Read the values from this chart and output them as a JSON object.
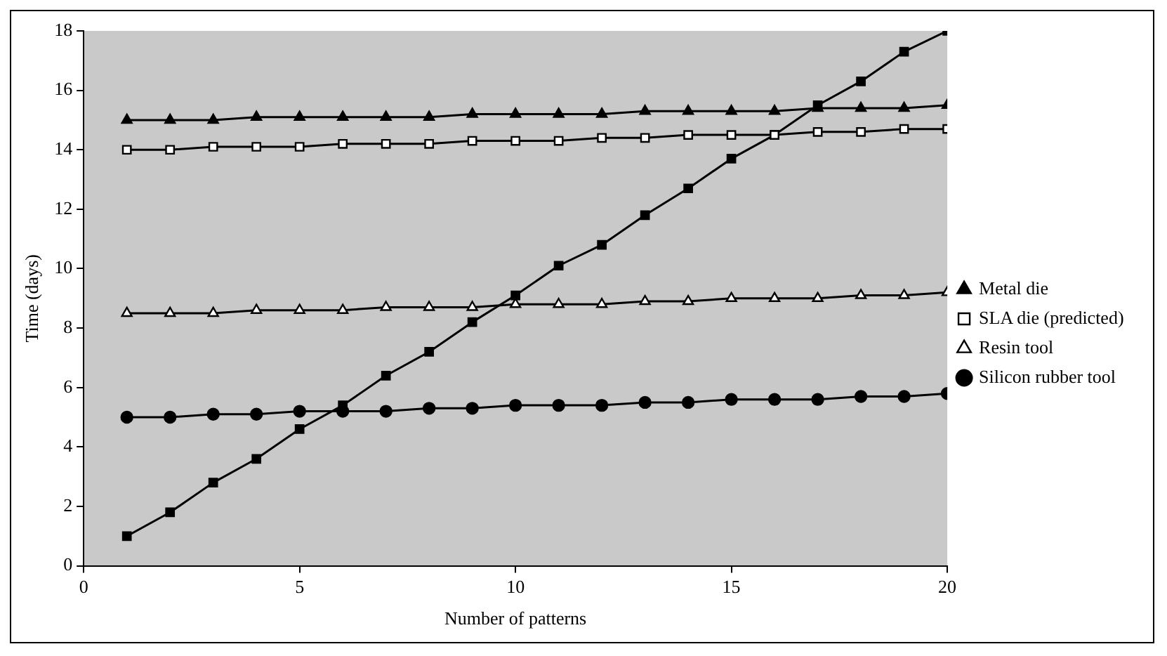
{
  "chart_data": {
    "type": "line",
    "xlabel": "Number of patterns",
    "ylabel": "Time (days)",
    "x": [
      1,
      2,
      3,
      4,
      5,
      6,
      7,
      8,
      9,
      10,
      11,
      12,
      13,
      14,
      15,
      16,
      17,
      18,
      19,
      20
    ],
    "xlim": [
      0,
      20
    ],
    "xticks": [
      0,
      5,
      10,
      15,
      20
    ],
    "ylim": [
      0,
      18
    ],
    "yticks": [
      0,
      2,
      4,
      6,
      8,
      10,
      12,
      14,
      16,
      18
    ],
    "grid": false,
    "legend": "right",
    "line_style": "solid",
    "series": [
      {
        "name": "Metal die",
        "color": "#000000",
        "marker": "triangle",
        "values": [
          15,
          15,
          15,
          15.1,
          15.1,
          15.1,
          15.1,
          15.1,
          15.2,
          15.2,
          15.2,
          15.2,
          15.3,
          15.3,
          15.3,
          15.3,
          15.4,
          15.4,
          15.4,
          15.5
        ]
      },
      {
        "name": "SLA die (predicted)",
        "color": "#000000",
        "marker": "square",
        "values": [
          14,
          14,
          14.1,
          14.1,
          14.1,
          14.2,
          14.2,
          14.2,
          14.3,
          14.3,
          14.3,
          14.4,
          14.4,
          14.5,
          14.5,
          14.5,
          14.6,
          14.6,
          14.7,
          14.7
        ]
      },
      {
        "name": "Resin tool",
        "color": "#000000",
        "marker": "triangle",
        "values": [
          8.5,
          8.5,
          8.5,
          8.6,
          8.6,
          8.6,
          8.7,
          8.7,
          8.7,
          8.8,
          8.8,
          8.8,
          8.9,
          8.9,
          9,
          9,
          9,
          9.1,
          9.1,
          9.2
        ]
      },
      {
        "name": "Silicon rubber tool",
        "color": "#000000",
        "marker": "circle",
        "values": [
          5,
          5,
          5.1,
          5.1,
          5.2,
          5.2,
          5.2,
          5.3,
          5.3,
          5.4,
          5.4,
          5.4,
          5.5,
          5.5,
          5.6,
          5.6,
          5.6,
          5.7,
          5.7,
          5.8
        ]
      },
      {
        "color": "#000000",
        "marker": "square",
        "values": [
          1,
          1.8,
          2.8,
          3.6,
          4.6,
          5.4,
          6.4,
          7.2,
          8.2,
          9.1,
          10.1,
          10.8,
          11.8,
          12.7,
          13.7,
          14.5,
          15.5,
          16.3,
          17.3,
          18
        ]
      }
    ]
  }
}
